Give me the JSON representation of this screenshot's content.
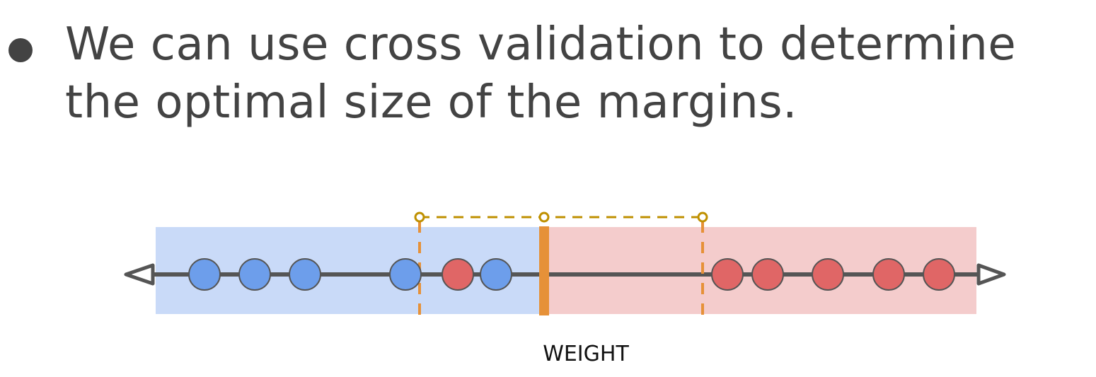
{
  "slide": {
    "bullet_text": "We can use cross validation to determine the optimal size of the margins."
  },
  "diagram": {
    "axis_label": "WEIGHT",
    "colors": {
      "blue_region": "#c9daf8",
      "red_region": "#f4cccc",
      "blue_point": "#6d9eeb",
      "red_point": "#e06666",
      "threshold": "#e69138",
      "margin_bracket": "#bf9000",
      "axis": "#555555"
    },
    "blue_points": [
      289,
      360,
      431,
      573,
      701
    ],
    "red_points": [
      647,
      1028,
      1085,
      1170,
      1256,
      1327
    ],
    "threshold_position": 769,
    "margin_left_position": 593,
    "margin_right_position": 993
  }
}
